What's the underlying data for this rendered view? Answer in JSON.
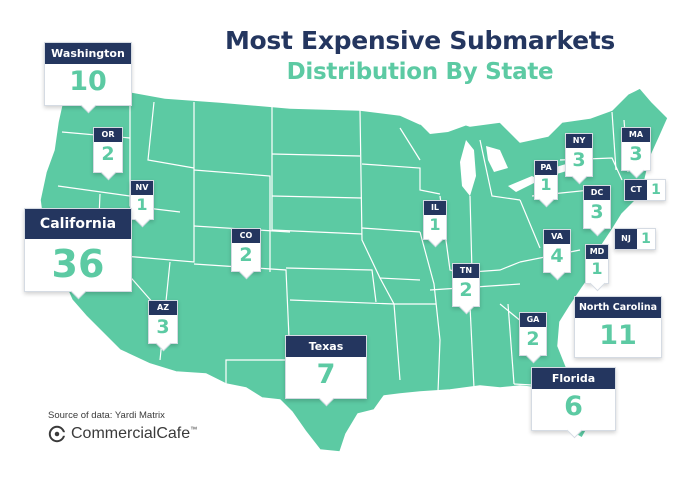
{
  "title": {
    "line1": "Most Expensive Submarkets",
    "line2": "Distribution By State"
  },
  "colors": {
    "map_fill": "#5ccaa3",
    "map_border": "#ffffff",
    "label_header": "#24365f",
    "number": "#5ccaa3",
    "title": "#24365f"
  },
  "states": [
    {
      "name": "Washington",
      "count": "10"
    },
    {
      "name": "OR",
      "count": "2"
    },
    {
      "name": "NV",
      "count": "1"
    },
    {
      "name": "California",
      "count": "36"
    },
    {
      "name": "CO",
      "count": "2"
    },
    {
      "name": "AZ",
      "count": "3"
    },
    {
      "name": "Texas",
      "count": "7"
    },
    {
      "name": "IL",
      "count": "1"
    },
    {
      "name": "TN",
      "count": "2"
    },
    {
      "name": "GA",
      "count": "2"
    },
    {
      "name": "Florida",
      "count": "6"
    },
    {
      "name": "North Carolina",
      "count": "11"
    },
    {
      "name": "VA",
      "count": "4"
    },
    {
      "name": "MD",
      "count": "1"
    },
    {
      "name": "DC",
      "count": "3"
    },
    {
      "name": "NJ",
      "count": "1"
    },
    {
      "name": "PA",
      "count": "1"
    },
    {
      "name": "NY",
      "count": "3"
    },
    {
      "name": "MA",
      "count": "3"
    },
    {
      "name": "CT",
      "count": "1"
    }
  ],
  "source": "Source of data: Yardi Matrix",
  "brand": {
    "name": "CommercialCafe",
    "tm": "™",
    "icon": "commercialcafe-logo-icon"
  }
}
